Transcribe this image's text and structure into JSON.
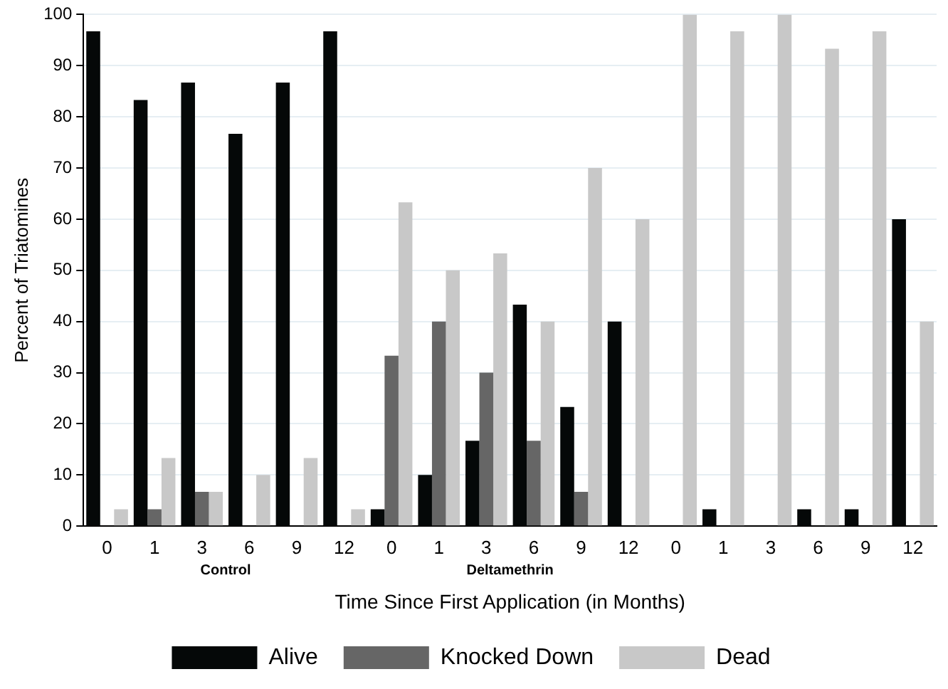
{
  "chart_data": {
    "type": "bar",
    "xlabel": "Time Since First Application (in Months)",
    "ylabel": "Percent of Triatomines",
    "categories": [
      "0",
      "1",
      "3",
      "6",
      "9",
      "12",
      "0",
      "1",
      "3",
      "6",
      "9",
      "12",
      "0",
      "1",
      "3",
      "6",
      "9",
      "12"
    ],
    "series": [
      {
        "name": "Alive",
        "color": "#050808",
        "values": [
          96.7,
          83.3,
          86.7,
          76.7,
          86.7,
          96.7,
          3.3,
          10,
          16.7,
          43.3,
          23.3,
          40,
          0,
          3.3,
          0,
          3.3,
          3.3,
          60
        ]
      },
      {
        "name": "Knocked Down",
        "color": "#666666",
        "values": [
          0,
          3.3,
          6.7,
          0,
          0,
          0,
          33.3,
          40,
          30,
          16.7,
          6.7,
          0,
          0,
          0,
          0,
          0,
          0,
          0
        ]
      },
      {
        "name": "Dead",
        "color": "#c8c8c8",
        "values": [
          3.3,
          13.3,
          6.7,
          10,
          13.3,
          3.3,
          63.3,
          50,
          53.3,
          40,
          70,
          60,
          100,
          96.7,
          100,
          93.3,
          96.7,
          40
        ]
      }
    ],
    "ylim": [
      0,
      100
    ],
    "yticks": [
      0,
      10,
      20,
      30,
      40,
      50,
      60,
      70,
      80,
      90,
      100
    ],
    "grid": "y",
    "legend": "bottom",
    "annotations": [
      "Control",
      "Deltamethrin"
    ]
  }
}
